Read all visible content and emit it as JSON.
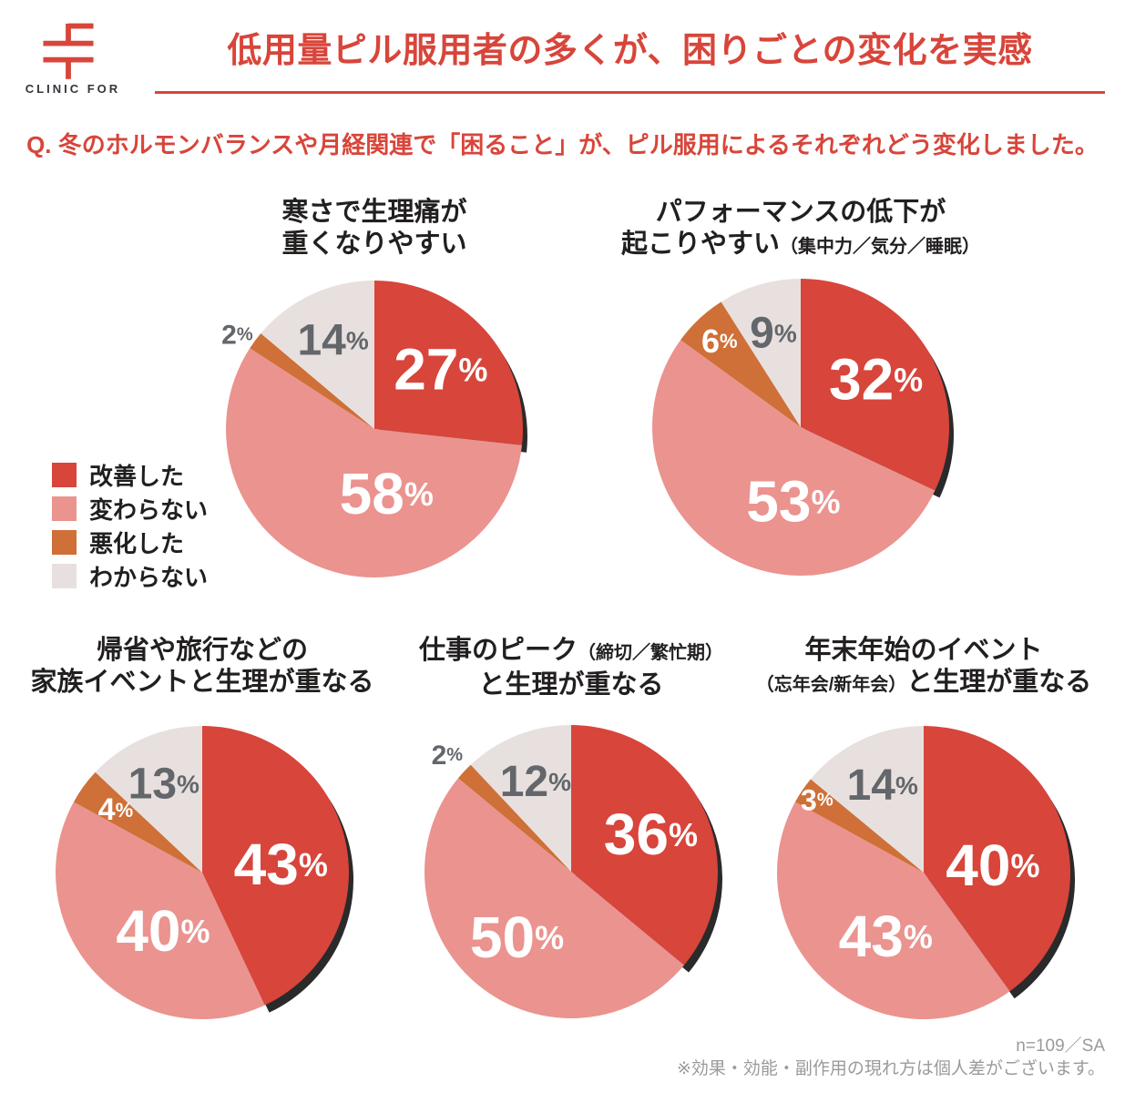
{
  "logo": {
    "brand": "CLINIC FOR"
  },
  "header": {
    "title": "低用量ピル服用者の多くが、困りごとの変化を実感"
  },
  "question": "Q. 冬のホルモンバランスや月経関連で「困ること」が、ピル服用によるそれぞれどう変化しました。",
  "colors": {
    "brand_red": "#d8453a",
    "improved": "#d7453b",
    "unchanged": "#eb938f",
    "worsened": "#ce7038",
    "unknown": "#e8e0de",
    "gray_label": "#63676b",
    "shadow": "#2a2a2a"
  },
  "legend": {
    "items": [
      {
        "label": "改善した",
        "color": "#d7453b"
      },
      {
        "label": "変わらない",
        "color": "#eb938f"
      },
      {
        "label": "悪化した",
        "color": "#ce7038"
      },
      {
        "label": "わからない",
        "color": "#e8e0de"
      }
    ]
  },
  "chart_data": [
    {
      "type": "pie",
      "title_segments": [
        [
          {
            "text": "寒さで生理痛が"
          }
        ],
        [
          {
            "text": "重くなりやすい"
          }
        ]
      ],
      "categories": [
        "改善した",
        "変わらない",
        "悪化した",
        "わからない"
      ],
      "values": [
        27,
        58,
        2,
        14
      ],
      "unit": "%",
      "start_angle": "12時方向から時計回り",
      "small_label_outside": true
    },
    {
      "type": "pie",
      "title_segments": [
        [
          {
            "text": "パフォーマンスの低下が"
          }
        ],
        [
          {
            "text": "起こりやすい"
          },
          {
            "text": "（集中力／気分／睡眠）",
            "small": true
          }
        ]
      ],
      "categories": [
        "改善した",
        "変わらない",
        "悪化した",
        "わからない"
      ],
      "values": [
        32,
        53,
        6,
        9
      ],
      "unit": "%",
      "start_angle": "12時方向から時計回り",
      "small_label_outside": false
    },
    {
      "type": "pie",
      "title_segments": [
        [
          {
            "text": "帰省や旅行などの"
          }
        ],
        [
          {
            "text": "家族イベントと生理が重なる"
          }
        ]
      ],
      "categories": [
        "改善した",
        "変わらない",
        "悪化した",
        "わからない"
      ],
      "values": [
        43,
        40,
        4,
        13
      ],
      "unit": "%",
      "start_angle": "12時方向から時計回り",
      "small_label_outside": false
    },
    {
      "type": "pie",
      "title_segments": [
        [
          {
            "text": "仕事のピーク"
          },
          {
            "text": "（締切／繁忙期）",
            "small": true
          }
        ],
        [
          {
            "text": "と生理が重なる"
          }
        ]
      ],
      "categories": [
        "改善した",
        "変わらない",
        "悪化した",
        "わからない"
      ],
      "values": [
        36,
        50,
        2,
        12
      ],
      "unit": "%",
      "start_angle": "12時方向から時計回り",
      "small_label_outside": true
    },
    {
      "type": "pie",
      "title_segments": [
        [
          {
            "text": "年末年始のイベント"
          }
        ],
        [
          {
            "text": "（忘年会/新年会）",
            "small": true
          },
          {
            "text": "と生理が重なる"
          }
        ]
      ],
      "categories": [
        "改善した",
        "変わらない",
        "悪化した",
        "わからない"
      ],
      "values": [
        40,
        43,
        3,
        14
      ],
      "unit": "%",
      "start_angle": "12時方向から時計回り",
      "small_label_outside": false
    }
  ],
  "footer": {
    "sample": "n=109／SA",
    "disclaimer": "※効果・効能・副作用の現れ方は個人差がございます。"
  }
}
